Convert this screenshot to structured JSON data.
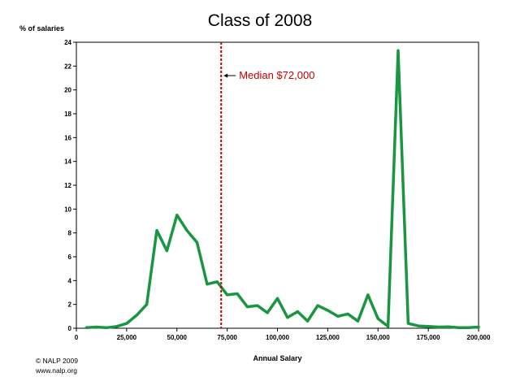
{
  "chart_data": {
    "type": "line",
    "title": "Class of 2008",
    "xlabel": "Annual Salary",
    "ylabel": "% of salaries",
    "xlim": [
      0,
      200000
    ],
    "ylim": [
      0,
      24
    ],
    "xticks": [
      0,
      25000,
      50000,
      75000,
      100000,
      125000,
      150000,
      175000,
      200000
    ],
    "xtick_labels": [
      "0",
      "25,000",
      "50,000",
      "75,000",
      "100,000",
      "125,000",
      "150,000",
      "175,000",
      "200,000"
    ],
    "yticks": [
      0,
      2,
      4,
      6,
      8,
      10,
      12,
      14,
      16,
      18,
      20,
      22,
      24
    ],
    "grid": false,
    "series": [
      {
        "color": "#1a9641",
        "x": [
          5000,
          10000,
          15000,
          20000,
          25000,
          30000,
          35000,
          40000,
          45000,
          50000,
          55000,
          60000,
          65000,
          70000,
          75000,
          80000,
          85000,
          90000,
          95000,
          100000,
          105000,
          110000,
          115000,
          120000,
          125000,
          130000,
          135000,
          140000,
          145000,
          150000,
          155000,
          160000,
          165000,
          170000,
          175000,
          180000,
          185000,
          190000,
          195000,
          200000
        ],
        "y": [
          0.05,
          0.1,
          0.05,
          0.15,
          0.4,
          1.1,
          2.0,
          8.2,
          6.5,
          9.5,
          8.2,
          7.2,
          3.7,
          3.9,
          2.8,
          2.9,
          1.8,
          1.9,
          1.3,
          2.5,
          0.9,
          1.4,
          0.6,
          1.9,
          1.5,
          1.0,
          1.2,
          0.6,
          2.8,
          0.8,
          0.15,
          23.3,
          0.4,
          0.2,
          0.15,
          0.1,
          0.12,
          0.05,
          0.05,
          0.1
        ]
      }
    ],
    "median_line": {
      "x": 72000,
      "color": "#cc0000",
      "label": "Median $72,000"
    }
  },
  "footer": {
    "copyright": "© NALP 2009",
    "url": "www.nalp.org"
  }
}
